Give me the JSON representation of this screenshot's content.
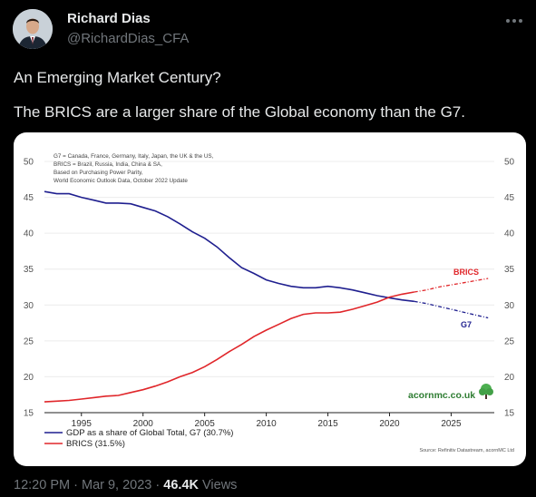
{
  "tweet": {
    "author_name": "Richard Dias",
    "author_handle": "@RichardDias_CFA",
    "more_icon": "more-horizontal-icon",
    "text_line1": "An Emerging Market Century?",
    "text_line2": "The BRICS are a larger share of the Global economy than the G7.",
    "time": "12:20 PM",
    "sep1": "·",
    "date": "Mar 9, 2023",
    "sep2": "·",
    "views_count": "46.4K",
    "views_label": "Views"
  },
  "chart_data": {
    "type": "line",
    "notes": [
      "G7 = Canada, France, Germany, Italy, Japan, the UK & the US,",
      "BRICS = Brazil, Russia, India, China & SA,",
      "Based on Purchasing Power Parity,",
      "World Economic Outlook Data, October 2022 Update"
    ],
    "xlim": [
      1992,
      2028.5
    ],
    "ylim": [
      15,
      50
    ],
    "x_ticks": [
      1995,
      2000,
      2005,
      2010,
      2015,
      2020,
      2025
    ],
    "y_ticks": [
      15,
      20,
      25,
      30,
      35,
      40,
      45,
      50
    ],
    "projection_start": 2022,
    "series": [
      {
        "name": "GDP as a share of Global Total, G7 (30.7%)",
        "label": "G7",
        "color": "#1f1f8f",
        "x": [
          1992,
          1993,
          1994,
          1995,
          1996,
          1997,
          1998,
          1999,
          2000,
          2001,
          2002,
          2003,
          2004,
          2005,
          2006,
          2007,
          2008,
          2009,
          2010,
          2011,
          2012,
          2013,
          2014,
          2015,
          2016,
          2017,
          2018,
          2019,
          2020,
          2021,
          2022,
          2023,
          2024,
          2025,
          2026,
          2027,
          2028
        ],
        "y": [
          45.8,
          45.5,
          45.5,
          45.0,
          44.6,
          44.2,
          44.2,
          44.1,
          43.6,
          43.1,
          42.3,
          41.3,
          40.2,
          39.3,
          38.1,
          36.6,
          35.2,
          34.4,
          33.5,
          33.0,
          32.6,
          32.4,
          32.4,
          32.6,
          32.4,
          32.1,
          31.7,
          31.3,
          31.0,
          30.7,
          30.5,
          30.2,
          29.8,
          29.4,
          29.0,
          28.6,
          28.2
        ]
      },
      {
        "name": "BRICS (31.5%)",
        "label": "BRICS",
        "color": "#e0262a",
        "x": [
          1992,
          1993,
          1994,
          1995,
          1996,
          1997,
          1998,
          1999,
          2000,
          2001,
          2002,
          2003,
          2004,
          2005,
          2006,
          2007,
          2008,
          2009,
          2010,
          2011,
          2012,
          2013,
          2014,
          2015,
          2016,
          2017,
          2018,
          2019,
          2020,
          2021,
          2022,
          2023,
          2024,
          2025,
          2026,
          2027,
          2028
        ],
        "y": [
          16.5,
          16.6,
          16.7,
          16.9,
          17.1,
          17.3,
          17.4,
          17.8,
          18.2,
          18.7,
          19.3,
          20.0,
          20.6,
          21.4,
          22.4,
          23.5,
          24.5,
          25.6,
          26.5,
          27.3,
          28.1,
          28.7,
          28.9,
          28.9,
          29.0,
          29.4,
          29.9,
          30.4,
          31.1,
          31.5,
          31.8,
          32.1,
          32.5,
          32.8,
          33.1,
          33.4,
          33.7
        ]
      }
    ],
    "annotation": "acornmc.co.uk",
    "logo_icon": "tree-icon",
    "source": "Source: Refinitiv Datastream, acornMC Ltd"
  }
}
